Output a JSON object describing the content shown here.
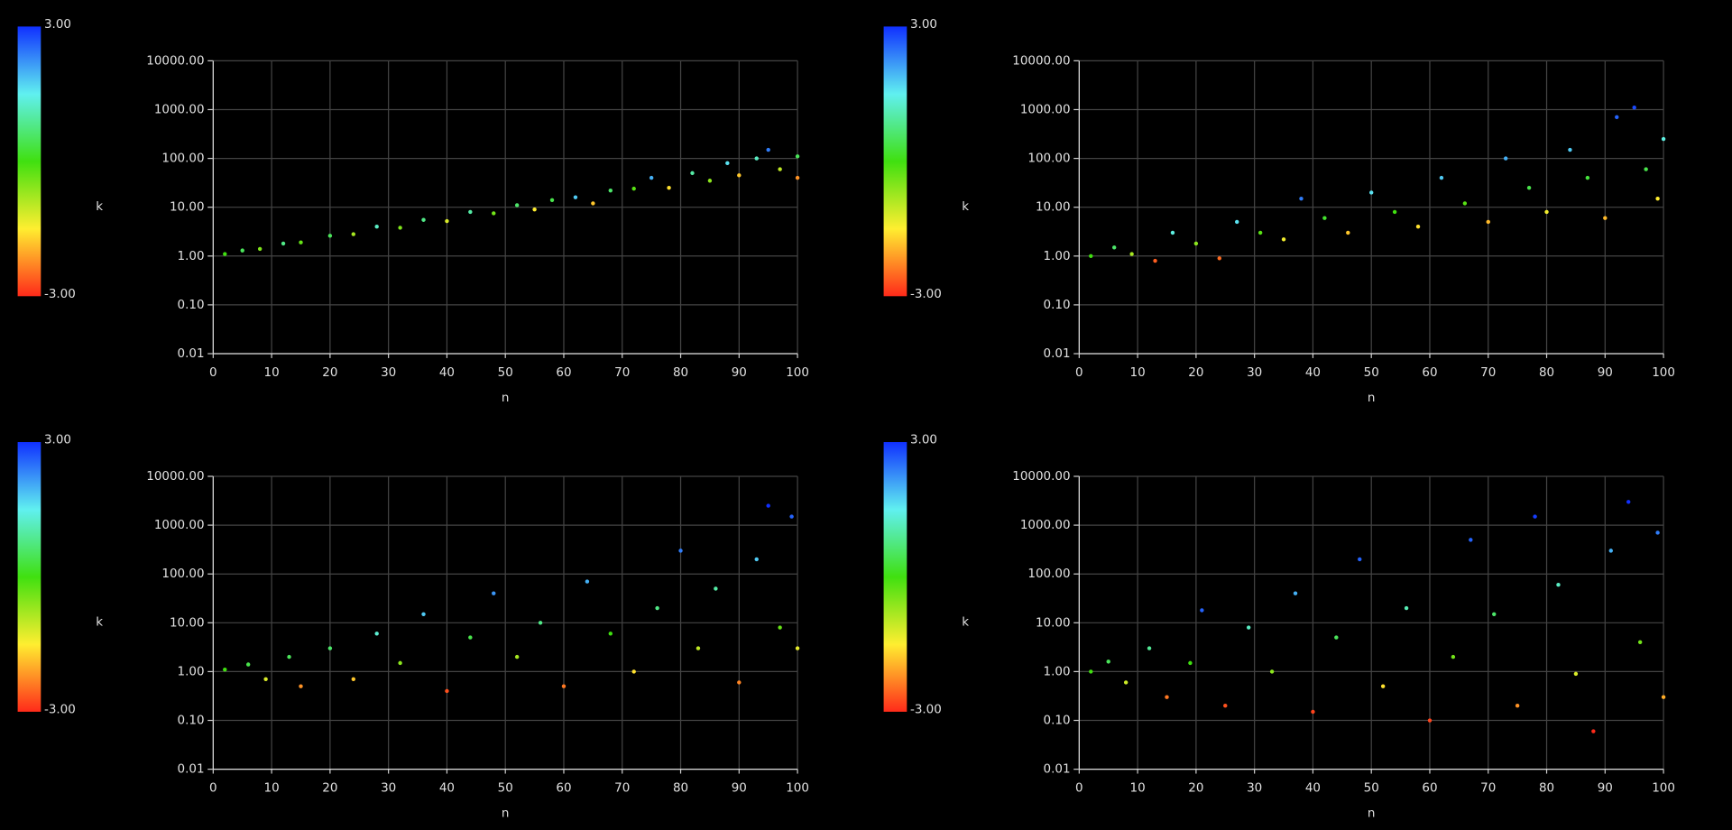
{
  "chart_data": [
    {
      "type": "scatter",
      "x_label": "n",
      "y_label": "k",
      "log_y": true,
      "grid": true,
      "colormap": [
        "#ff2a1a",
        "#ffee30",
        "#40e010",
        "#60f0f0",
        "#1030ff"
      ],
      "clim": [
        -3,
        3
      ],
      "cticks": [
        {
          "value": 3,
          "label": "3.00"
        },
        {
          "value": -3,
          "label": "-3.00"
        }
      ],
      "xlim": [
        0,
        100
      ],
      "xticks": [
        0,
        10,
        20,
        30,
        40,
        50,
        60,
        70,
        80,
        90,
        100
      ],
      "ylim": [
        0.01,
        10000
      ],
      "yticks": [
        {
          "value": 0.01,
          "label": "0.01"
        },
        {
          "value": 0.1,
          "label": "0.10"
        },
        {
          "value": 1,
          "label": "1.00"
        },
        {
          "value": 10,
          "label": "10.00"
        },
        {
          "value": 100,
          "label": "100.00"
        },
        {
          "value": 1000,
          "label": "1000.00"
        },
        {
          "value": 10000,
          "label": "10000.00"
        }
      ],
      "x": [
        2,
        5,
        8,
        12,
        15,
        20,
        24,
        28,
        32,
        36,
        40,
        44,
        48,
        52,
        55,
        58,
        62,
        65,
        68,
        72,
        75,
        78,
        82,
        85,
        88,
        90,
        93,
        95,
        97,
        100,
        100
      ],
      "y": [
        1.1,
        1.3,
        1.4,
        1.8,
        1.9,
        2.6,
        2.8,
        4,
        3.8,
        5.5,
        5.2,
        8,
        7.5,
        11,
        9,
        14,
        16,
        12,
        22,
        24,
        40,
        25,
        50,
        35,
        80,
        45,
        100,
        150,
        60,
        110,
        40
      ],
      "c": [
        0,
        0.5,
        -0.5,
        0.8,
        -0.3,
        0.5,
        -0.8,
        1.2,
        -0.5,
        0.8,
        -1.2,
        1.0,
        -0.4,
        0.6,
        -1.5,
        0.4,
        1.8,
        -1.8,
        0.6,
        -0.2,
        2.0,
        -1.6,
        1.0,
        -0.6,
        1.6,
        -1.8,
        1.2,
        2.4,
        -1.0,
        0.5,
        -2.2
      ]
    },
    {
      "type": "scatter",
      "x_label": "n",
      "y_label": "k",
      "log_y": true,
      "grid": true,
      "colormap": [
        "#ff2a1a",
        "#ffee30",
        "#40e010",
        "#60f0f0",
        "#1030ff"
      ],
      "clim": [
        -3,
        3
      ],
      "cticks": [
        {
          "value": 3,
          "label": "3.00"
        },
        {
          "value": -3,
          "label": "-3.00"
        }
      ],
      "xlim": [
        0,
        100
      ],
      "xticks": [
        0,
        10,
        20,
        30,
        40,
        50,
        60,
        70,
        80,
        90,
        100
      ],
      "ylim": [
        0.01,
        10000
      ],
      "yticks": [
        {
          "value": 0.01,
          "label": "0.01"
        },
        {
          "value": 0.1,
          "label": "0.10"
        },
        {
          "value": 1,
          "label": "1.00"
        },
        {
          "value": 10,
          "label": "10.00"
        },
        {
          "value": 100,
          "label": "100.00"
        },
        {
          "value": 1000,
          "label": "1000.00"
        },
        {
          "value": 10000,
          "label": "10000.00"
        }
      ],
      "x": [
        2,
        6,
        9,
        13,
        16,
        20,
        24,
        27,
        31,
        35,
        38,
        42,
        46,
        50,
        54,
        58,
        62,
        66,
        70,
        73,
        77,
        80,
        84,
        87,
        90,
        92,
        95,
        97,
        99,
        100
      ],
      "y": [
        1.0,
        1.5,
        1.1,
        0.8,
        3,
        1.8,
        0.9,
        5,
        3,
        2.2,
        15,
        6,
        3,
        20,
        8,
        4,
        40,
        12,
        5,
        100,
        25,
        8,
        150,
        40,
        6,
        700,
        1100,
        60,
        15,
        250
      ],
      "c": [
        0,
        0.6,
        -0.8,
        -2.6,
        1.4,
        -0.6,
        -2.5,
        1.6,
        -0.2,
        -1.4,
        2.4,
        0.2,
        -1.8,
        1.6,
        0,
        -1.6,
        1.8,
        -0.2,
        -1.9,
        2.0,
        0.4,
        -1.4,
        1.8,
        0.3,
        -1.9,
        2.6,
        2.8,
        0.4,
        -1.5,
        1.4
      ]
    },
    {
      "type": "scatter",
      "x_label": "n",
      "y_label": "k",
      "log_y": true,
      "grid": true,
      "colormap": [
        "#ff2a1a",
        "#ffee30",
        "#40e010",
        "#60f0f0",
        "#1030ff"
      ],
      "clim": [
        -3,
        3
      ],
      "cticks": [
        {
          "value": 3,
          "label": "3.00"
        },
        {
          "value": -3,
          "label": "-3.00"
        }
      ],
      "xlim": [
        0,
        100
      ],
      "xticks": [
        0,
        10,
        20,
        30,
        40,
        50,
        60,
        70,
        80,
        90,
        100
      ],
      "ylim": [
        0.01,
        10000
      ],
      "yticks": [
        {
          "value": 0.01,
          "label": "0.01"
        },
        {
          "value": 0.1,
          "label": "0.10"
        },
        {
          "value": 1,
          "label": "1.00"
        },
        {
          "value": 10,
          "label": "10.00"
        },
        {
          "value": 100,
          "label": "100.00"
        },
        {
          "value": 1000,
          "label": "1000.00"
        },
        {
          "value": 10000,
          "label": "10000.00"
        }
      ],
      "x": [
        2,
        6,
        9,
        13,
        15,
        20,
        24,
        28,
        32,
        36,
        40,
        44,
        48,
        52,
        56,
        60,
        64,
        68,
        72,
        76,
        80,
        83,
        86,
        90,
        93,
        95,
        97,
        99,
        100
      ],
      "y": [
        1.1,
        1.4,
        0.7,
        2,
        0.5,
        3,
        0.7,
        6,
        1.5,
        15,
        0.4,
        5,
        40,
        2,
        10,
        0.5,
        70,
        6,
        1,
        20,
        300,
        3,
        50,
        0.6,
        200,
        2500,
        8,
        1500,
        3
      ],
      "c": [
        0,
        0.4,
        -1.2,
        0.5,
        -2.2,
        0.6,
        -1.8,
        1.3,
        -0.6,
        1.8,
        -2.7,
        0.4,
        2.2,
        -0.8,
        0.8,
        -2.4,
        2.0,
        0,
        -1.6,
        0.8,
        2.4,
        -1.0,
        1.0,
        -2.3,
        1.8,
        3.0,
        -0.3,
        2.6,
        -1.3
      ]
    },
    {
      "type": "scatter",
      "x_label": "n",
      "y_label": "k",
      "log_y": true,
      "grid": true,
      "colormap": [
        "#ff2a1a",
        "#ffee30",
        "#40e010",
        "#60f0f0",
        "#1030ff"
      ],
      "clim": [
        -3,
        3
      ],
      "cticks": [
        {
          "value": 3,
          "label": "3.00"
        },
        {
          "value": -3,
          "label": "-3.00"
        }
      ],
      "xlim": [
        0,
        100
      ],
      "xticks": [
        0,
        10,
        20,
        30,
        40,
        50,
        60,
        70,
        80,
        90,
        100
      ],
      "ylim": [
        0.01,
        10000
      ],
      "yticks": [
        {
          "value": 0.01,
          "label": "0.01"
        },
        {
          "value": 0.1,
          "label": "0.10"
        },
        {
          "value": 1,
          "label": "1.00"
        },
        {
          "value": 10,
          "label": "10.00"
        },
        {
          "value": 100,
          "label": "100.00"
        },
        {
          "value": 1000,
          "label": "1000.00"
        },
        {
          "value": 10000,
          "label": "10000.00"
        }
      ],
      "x": [
        2,
        5,
        8,
        12,
        15,
        19,
        21,
        25,
        29,
        33,
        37,
        40,
        44,
        48,
        52,
        56,
        60,
        64,
        67,
        71,
        75,
        78,
        82,
        85,
        88,
        91,
        94,
        96,
        99,
        100
      ],
      "y": [
        1.0,
        1.6,
        0.6,
        3,
        0.3,
        1.5,
        18,
        0.2,
        8,
        1,
        40,
        0.15,
        5,
        200,
        0.5,
        20,
        0.1,
        2,
        500,
        15,
        0.2,
        1500,
        60,
        0.9,
        0.06,
        300,
        3000,
        4,
        700,
        0.3
      ],
      "c": [
        0,
        0.5,
        -1.1,
        0.9,
        -2.4,
        0,
        2.6,
        -2.7,
        1.2,
        -0.6,
        2.0,
        -2.8,
        0.5,
        2.6,
        -1.6,
        1.1,
        -2.8,
        -0.4,
        2.6,
        0.6,
        -2.2,
        2.9,
        1.2,
        -1.2,
        -3.0,
        2.0,
        3.0,
        -0.4,
        2.4,
        -2.0
      ]
    }
  ]
}
